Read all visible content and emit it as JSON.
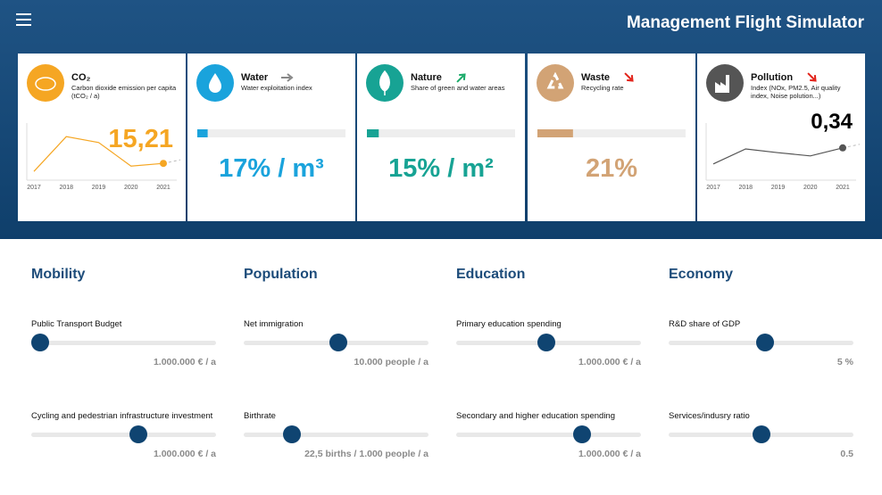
{
  "header": {
    "title": "Management Flight Simulator"
  },
  "cards": [
    {
      "title": "CO₂",
      "subtitle": "Carbon dioxide emission per capita (tCO₂ / a)",
      "value": "15,21",
      "color": "#f5a623",
      "icon": "co2",
      "chart": {
        "x": [
          "2017",
          "2018",
          "2019",
          "2020",
          "2021"
        ],
        "values": [
          13,
          78,
          67,
          23,
          28
        ],
        "ylim": [
          0,
          100
        ],
        "color": "#f5a623"
      }
    },
    {
      "title": "Water",
      "subtitle": "Water exploitation index",
      "value": "17% / m³",
      "color": "#1aa3dc",
      "icon": "water",
      "trend": "flat",
      "bar_fill": 7
    },
    {
      "title": "Nature",
      "subtitle": "Share of green and water areas",
      "value": "15% / m²",
      "color": "#17a394",
      "icon": "nature",
      "trend": "up",
      "bar_fill": 8
    },
    {
      "title": "Waste",
      "subtitle": "Recycling rate",
      "value": "21%",
      "color": "#d2a375",
      "icon": "waste",
      "trend": "down",
      "bar_fill": 24
    },
    {
      "title": "Pollution",
      "subtitle": "Index (NOx, PM2.5, Air quality index, Noise polution...)",
      "value": "0,34",
      "color": "#555555",
      "icon": "pollution",
      "trend": "down",
      "chart": {
        "x": [
          "2017",
          "2018",
          "2019",
          "2020",
          "2021"
        ],
        "values": [
          27,
          55,
          48,
          42,
          57
        ],
        "ylim": [
          0,
          100
        ],
        "color": "#555555"
      }
    }
  ],
  "sections": [
    {
      "title": "Mobility",
      "sliders": [
        {
          "label": "Public Transport Budget",
          "value": "1.000.000 € / a",
          "position": 5
        },
        {
          "label": "Cycling and pedestrian infrastructure investment",
          "value": "1.000.000 € / a",
          "position": 58
        }
      ]
    },
    {
      "title": "Population",
      "sliders": [
        {
          "label": "Net immigration",
          "value": "10.000 people / a",
          "position": 51
        },
        {
          "label": "Birthrate",
          "value": "22,5 births / 1.000 people / a",
          "position": 26
        }
      ]
    },
    {
      "title": "Education",
      "sliders": [
        {
          "label": "Primary education spending",
          "value": "1.000.000 € / a",
          "position": 49
        },
        {
          "label": "Secondary and higher education spending",
          "value": "1.000.000 € / a",
          "position": 68
        }
      ]
    },
    {
      "title": "Economy",
      "sliders": [
        {
          "label": "R&D share of GDP",
          "value": "5 %",
          "position": 52
        },
        {
          "label": "Services/indusry ratio",
          "value": "0.5",
          "position": 50
        }
      ]
    }
  ]
}
